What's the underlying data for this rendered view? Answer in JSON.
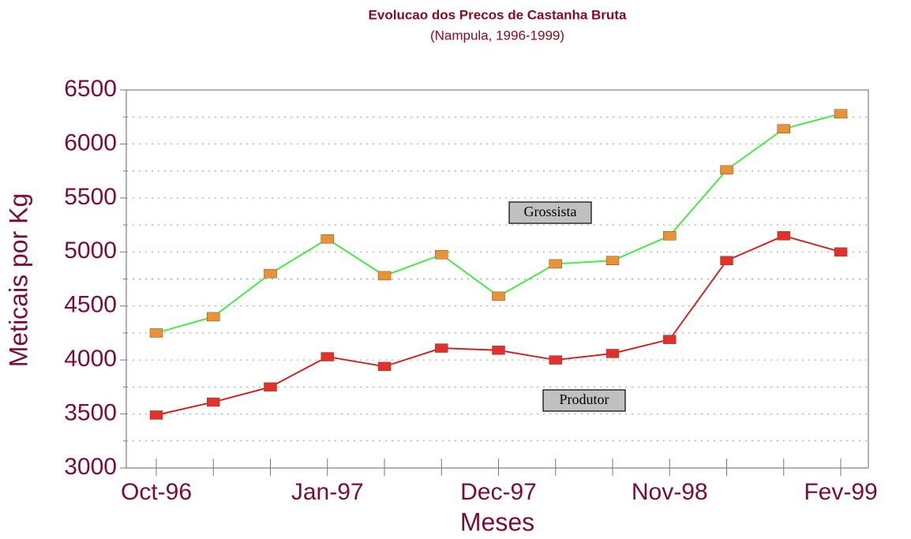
{
  "chart_data": {
    "type": "line",
    "title": "Evolucao dos Precos de Castanha Bruta",
    "subtitle": "(Nampula, 1996-1999)",
    "x_label": "Meses",
    "y_label": "Meticais por Kg",
    "categories": [
      "Oct-96",
      null,
      null,
      "Jan-97",
      null,
      null,
      "Dec-97",
      null,
      null,
      "Nov-98",
      null,
      null,
      "Fev-99"
    ],
    "series": [
      {
        "name": "Grossista",
        "color": "#33ee33",
        "marker_color": "#e8923a",
        "values": [
          4250,
          4400,
          4800,
          5120,
          4780,
          4975,
          4590,
          4890,
          4920,
          5150,
          5760,
          6140,
          6280
        ]
      },
      {
        "name": "Produtor",
        "color": "#dd1111",
        "marker_color": "#e03030",
        "values": [
          3490,
          3610,
          3750,
          4030,
          3940,
          4110,
          4090,
          4000,
          4060,
          4190,
          4920,
          5150,
          5000
        ]
      }
    ],
    "ylim": [
      3000,
      6500
    ],
    "yticks": [
      3000,
      3500,
      4000,
      4500,
      5000,
      5500,
      6000,
      6500
    ],
    "minor_yticks": [
      3250,
      3750,
      4250,
      4750,
      5250,
      5750,
      6250
    ],
    "grid": true
  }
}
